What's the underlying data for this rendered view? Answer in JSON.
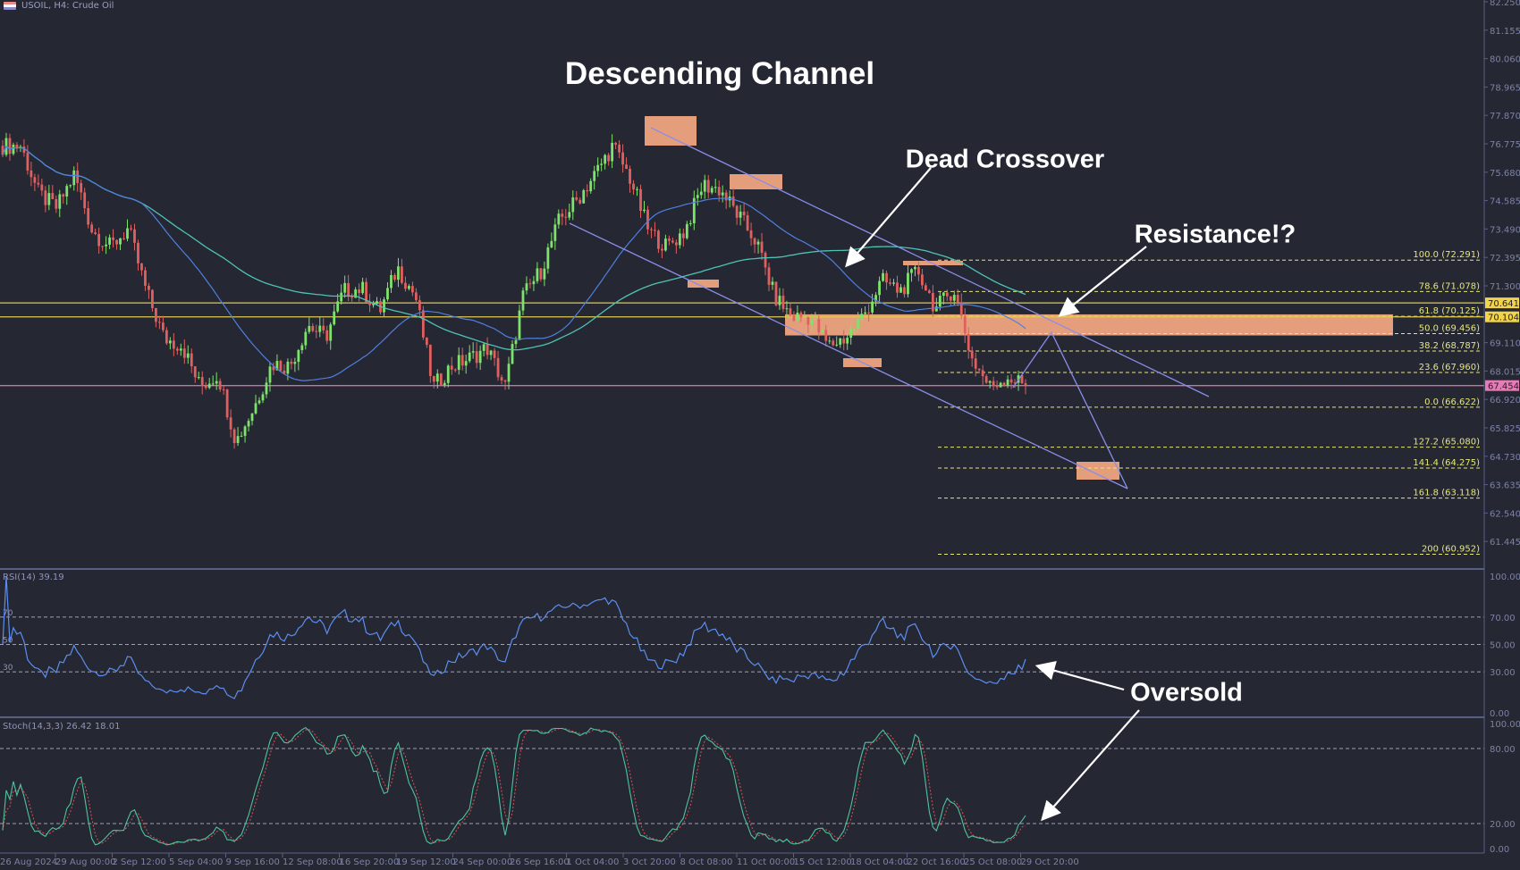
{
  "header": {
    "symbol_title": "USOIL, H4:  Crude Oil",
    "icon": "flag-icon"
  },
  "colors": {
    "background": "#252733",
    "bull": "#7ee36a",
    "bear": "#e06060",
    "channel": "#8a8ee8",
    "zone": "#f5a882",
    "fib": "#e6e67a",
    "ma_slow": "#4fc3b5",
    "ma_fast": "#4f7fe0",
    "support_line": "#e0c850",
    "price_line": "#d070a8",
    "rsi": "#5b8ef0",
    "stoch_k": "#4fc3a0",
    "stoch_d": "#e05050"
  },
  "annotations": {
    "channel": "Descending Channel",
    "crossover": "Dead Crossover",
    "resistance": "Resistance!?",
    "oversold": "Oversold"
  },
  "chart_data": [
    {
      "type": "candlestick",
      "title": "USOIL, H4:  Crude Oil",
      "ylim": [
        60.35,
        82.25
      ],
      "y_ticks": [
        "82.250",
        "81.155",
        "80.060",
        "78.965",
        "77.870",
        "76.775",
        "75.680",
        "74.585",
        "73.490",
        "72.395",
        "71.300",
        "69.110",
        "68.015",
        "66.920",
        "65.825",
        "64.730",
        "63.635",
        "62.540",
        "61.445"
      ],
      "x_ticks": [
        "26 Aug 2024",
        "29 Aug 00:00",
        "2 Sep 12:00",
        "5 Sep 04:00",
        "9 Sep 16:00",
        "12 Sep 08:00",
        "16 Sep 20:00",
        "19 Sep 12:00",
        "24 Sep 00:00",
        "26 Sep 16:00",
        "1 Oct 04:00",
        "3 Oct 20:00",
        "8 Oct 08:00",
        "11 Oct 00:00",
        "15 Oct 12:00",
        "18 Oct 04:00",
        "22 Oct 16:00",
        "25 Oct 08:00",
        "29 Oct 20:00"
      ],
      "approx_closes": [
        76.7,
        76.7,
        74.85,
        74.3,
        75.6,
        73.4,
        72.8,
        73.5,
        71.1,
        69.27,
        69.0,
        67.4,
        67.9,
        65.3,
        66.6,
        68.3,
        68.2,
        69.8,
        69.3,
        71.1,
        71.2,
        70.3,
        72.0,
        70.9,
        67.4,
        68.2,
        68.5,
        68.9,
        67.4,
        70.9,
        71.9,
        73.8,
        74.6,
        75.6,
        76.7,
        75.4,
        73.4,
        72.8,
        73.4,
        75.2,
        75.0,
        74.0,
        73.0,
        70.9,
        70.1,
        70.1,
        69.0,
        69.3,
        70.2,
        71.5,
        71.1,
        71.9,
        70.4,
        71.2,
        68.5,
        67.4,
        67.8,
        67.454
      ],
      "price_labels": [
        {
          "value": "70.641",
          "color": "#f3d34a"
        },
        {
          "value": "70.104",
          "color": "#f3d34a"
        },
        {
          "value": "67.454",
          "color": "#e87ab8"
        }
      ],
      "fibonacci": [
        {
          "label": "100.0 (72.291)",
          "price": 72.291
        },
        {
          "label": "78.6 (71.078)",
          "price": 71.078
        },
        {
          "label": "61.8 (70.125)",
          "price": 70.125
        },
        {
          "label": "50.0 (69.456)",
          "price": 69.456
        },
        {
          "label": "38.2 (68.787)",
          "price": 68.787
        },
        {
          "label": "23.6 (67.960)",
          "price": 67.96
        },
        {
          "label": "0.0 (66.622)",
          "price": 66.622
        },
        {
          "label": "127.2 (65.080)",
          "price": 65.08
        },
        {
          "label": "141.4 (64.275)",
          "price": 64.275
        },
        {
          "label": "161.8 (63.118)",
          "price": 63.118
        },
        {
          "label": "200 (60.952)",
          "price": 60.952
        }
      ],
      "horizontal_lines": [
        70.641,
        70.104,
        67.454
      ],
      "resistance_zone": [
        69.456,
        70.2
      ]
    },
    {
      "type": "line",
      "title": "RSI(14) 39.19",
      "ylim": [
        0,
        100
      ],
      "y_ticks": [
        "100.00",
        "70.00",
        "50.00",
        "30.00",
        "0.00"
      ],
      "levels": [
        70,
        50,
        30
      ],
      "level_labels": [
        "70",
        "50",
        "30"
      ],
      "last_value": 39.19
    },
    {
      "type": "line",
      "title": "Stoch(14,3,3) 26.42 18.01",
      "ylim": [
        0,
        100
      ],
      "y_ticks": [
        "100.00",
        "80.00",
        "20.00",
        "0.00"
      ],
      "levels": [
        80,
        20
      ],
      "last_k": 26.42,
      "last_d": 18.01
    }
  ]
}
